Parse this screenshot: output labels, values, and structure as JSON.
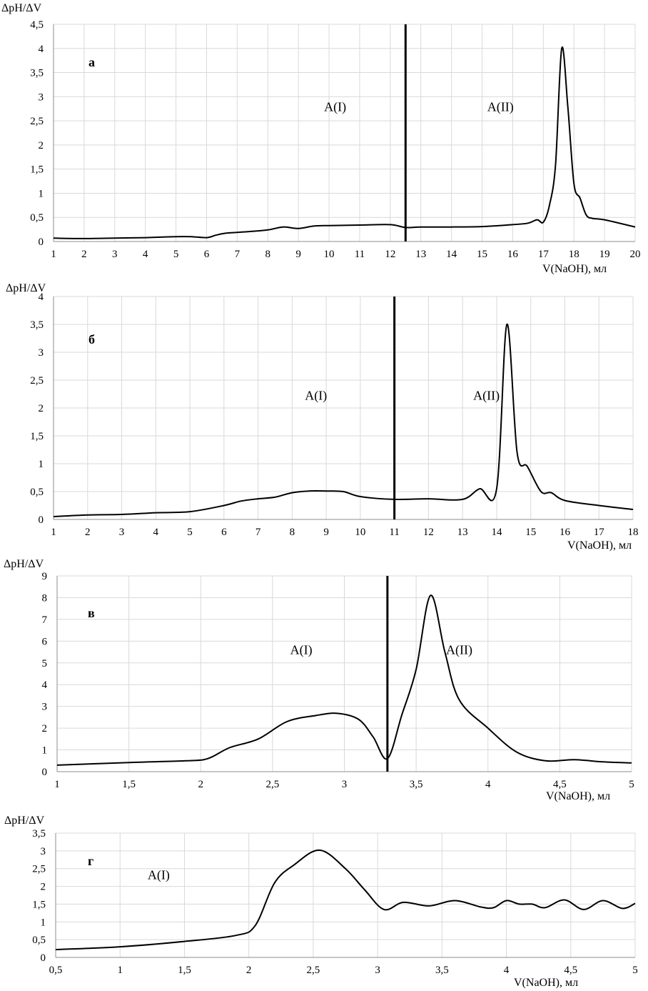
{
  "chart_data": [
    {
      "type": "line",
      "panel_label": "а",
      "ylabel": "ΔpH/ΔV",
      "xlabel": "V(NaOH), мл",
      "xlim": [
        1,
        20
      ],
      "ylim": [
        0,
        4.5
      ],
      "x_ticks": [
        "1",
        "2",
        "3",
        "4",
        "5",
        "6",
        "7",
        "8",
        "9",
        "10",
        "11",
        "12",
        "13",
        "14",
        "15",
        "16",
        "17",
        "18",
        "19",
        "20"
      ],
      "y_ticks": [
        "0",
        "0,5",
        "1",
        "1,5",
        "2",
        "2,5",
        "3",
        "3,5",
        "4",
        "4,5"
      ],
      "x_tick_values": [
        1,
        2,
        3,
        4,
        5,
        6,
        7,
        8,
        9,
        10,
        11,
        12,
        13,
        14,
        15,
        16,
        17,
        18,
        19,
        20
      ],
      "y_tick_values": [
        0,
        0.5,
        1,
        1.5,
        2,
        2.5,
        3,
        3.5,
        4,
        4.5
      ],
      "grid": true,
      "divider_x": 12.5,
      "regions": [
        {
          "label": "A(I)",
          "x": 10.2,
          "y": 2.7
        },
        {
          "label": "A(II)",
          "x": 15.6,
          "y": 2.7
        }
      ],
      "series": [
        {
          "x": [
            1,
            2,
            3,
            4,
            4.5,
            5,
            5.5,
            6,
            6.3,
            6.6,
            7,
            7.5,
            8,
            8.5,
            9,
            9.5,
            10,
            11,
            12,
            12.5,
            13,
            14,
            15,
            16,
            16.5,
            16.8,
            17,
            17.2,
            17.4,
            17.6,
            17.8,
            18,
            18.2,
            18.4,
            18.6,
            19,
            20
          ],
          "y": [
            0.07,
            0.06,
            0.07,
            0.08,
            0.09,
            0.1,
            0.1,
            0.08,
            0.13,
            0.17,
            0.19,
            0.21,
            0.24,
            0.3,
            0.27,
            0.32,
            0.33,
            0.34,
            0.35,
            0.29,
            0.3,
            0.3,
            0.31,
            0.35,
            0.38,
            0.45,
            0.4,
            0.75,
            1.6,
            4.0,
            2.8,
            1.2,
            0.9,
            0.55,
            0.48,
            0.45,
            0.3
          ]
        }
      ]
    },
    {
      "type": "line",
      "panel_label": "б",
      "ylabel": "ΔpH/ΔV",
      "xlabel": "V(NaOH), мл",
      "xlim": [
        1,
        18
      ],
      "ylim": [
        0,
        4
      ],
      "x_ticks": [
        "1",
        "2",
        "3",
        "4",
        "5",
        "6",
        "7",
        "8",
        "9",
        "10",
        "11",
        "12",
        "13",
        "14",
        "15",
        "16",
        "17",
        "18"
      ],
      "y_ticks": [
        "0",
        "0,5",
        "1",
        "1,5",
        "2",
        "2,5",
        "3",
        "3,5",
        "4"
      ],
      "x_tick_values": [
        1,
        2,
        3,
        4,
        5,
        6,
        7,
        8,
        9,
        10,
        11,
        12,
        13,
        14,
        15,
        16,
        17,
        18
      ],
      "y_tick_values": [
        0,
        0.5,
        1,
        1.5,
        2,
        2.5,
        3,
        3.5,
        4
      ],
      "grid": true,
      "divider_x": 11,
      "regions": [
        {
          "label": "A(I)",
          "x": 8.7,
          "y": 2.15
        },
        {
          "label": "A(II)",
          "x": 13.7,
          "y": 2.15
        }
      ],
      "series": [
        {
          "x": [
            1,
            2,
            3,
            4,
            5,
            6,
            6.5,
            7,
            7.5,
            8,
            8.5,
            9,
            9.5,
            10,
            11,
            12,
            13,
            13.5,
            14,
            14.3,
            14.6,
            14.9,
            15.3,
            15.6,
            16,
            17,
            18
          ],
          "y": [
            0.05,
            0.08,
            0.09,
            0.12,
            0.14,
            0.25,
            0.33,
            0.37,
            0.4,
            0.48,
            0.51,
            0.51,
            0.5,
            0.41,
            0.36,
            0.37,
            0.36,
            0.55,
            0.55,
            3.5,
            1.2,
            0.95,
            0.5,
            0.48,
            0.34,
            0.25,
            0.18
          ]
        }
      ]
    },
    {
      "type": "line",
      "panel_label": "в",
      "ylabel": "ΔpH/ΔV",
      "xlabel": "V(NaOH), мл",
      "xlim": [
        1,
        5
      ],
      "ylim": [
        0,
        9
      ],
      "x_ticks": [
        "1",
        "1,5",
        "2",
        "2,5",
        "3",
        "3,5",
        "4",
        "4,5",
        "5"
      ],
      "y_ticks": [
        "0",
        "1",
        "2",
        "3",
        "4",
        "5",
        "6",
        "7",
        "8",
        "9"
      ],
      "x_tick_values": [
        1,
        1.5,
        2,
        2.5,
        3,
        3.5,
        4,
        4.5,
        5
      ],
      "y_tick_values": [
        0,
        1,
        2,
        3,
        4,
        5,
        6,
        7,
        8,
        9
      ],
      "grid": true,
      "divider_x": 3.3,
      "regions": [
        {
          "label": "A(I)",
          "x": 2.7,
          "y": 5.4
        },
        {
          "label": "A(II)",
          "x": 3.8,
          "y": 5.4
        }
      ],
      "series": [
        {
          "x": [
            1,
            1.5,
            1.9,
            2.05,
            2.2,
            2.4,
            2.6,
            2.8,
            2.95,
            3.1,
            3.2,
            3.3,
            3.4,
            3.5,
            3.6,
            3.7,
            3.8,
            4,
            4.2,
            4.4,
            4.6,
            4.8,
            5
          ],
          "y": [
            0.3,
            0.42,
            0.5,
            0.6,
            1.1,
            1.5,
            2.3,
            2.58,
            2.68,
            2.4,
            1.6,
            0.6,
            2.6,
            4.7,
            8.1,
            5.5,
            3.3,
            2.0,
            0.9,
            0.5,
            0.55,
            0.45,
            0.4
          ]
        }
      ]
    },
    {
      "type": "line",
      "panel_label": "г",
      "ylabel": "ΔpH/ΔV",
      "xlabel": "V(NaOH), мл",
      "xlim": [
        0.5,
        5
      ],
      "ylim": [
        0,
        3.5
      ],
      "x_ticks": [
        "0,5",
        "1",
        "1,5",
        "2",
        "2,5",
        "3",
        "3,5",
        "4",
        "4,5",
        "5"
      ],
      "y_ticks": [
        "0",
        "0,5",
        "1",
        "1,5",
        "2",
        "2,5",
        "3",
        "3,5"
      ],
      "x_tick_values": [
        0.5,
        1,
        1.5,
        2,
        2.5,
        3,
        3.5,
        4,
        4.5,
        5
      ],
      "y_tick_values": [
        0,
        0.5,
        1,
        1.5,
        2,
        2.5,
        3,
        3.5
      ],
      "grid": true,
      "divider_x": null,
      "regions": [
        {
          "label": "A(I)",
          "x": 1.3,
          "y": 2.2
        }
      ],
      "series": [
        {
          "x": [
            0.5,
            1,
            1.5,
            1.9,
            2.05,
            2.2,
            2.35,
            2.55,
            2.75,
            2.9,
            3.05,
            3.2,
            3.4,
            3.6,
            3.8,
            3.9,
            4,
            4.1,
            4.2,
            4.3,
            4.45,
            4.6,
            4.75,
            4.9,
            5
          ],
          "y": [
            0.22,
            0.3,
            0.45,
            0.62,
            0.9,
            2.1,
            2.6,
            3.02,
            2.5,
            1.9,
            1.35,
            1.55,
            1.45,
            1.6,
            1.42,
            1.4,
            1.6,
            1.5,
            1.5,
            1.4,
            1.62,
            1.35,
            1.6,
            1.38,
            1.52
          ]
        }
      ]
    }
  ]
}
